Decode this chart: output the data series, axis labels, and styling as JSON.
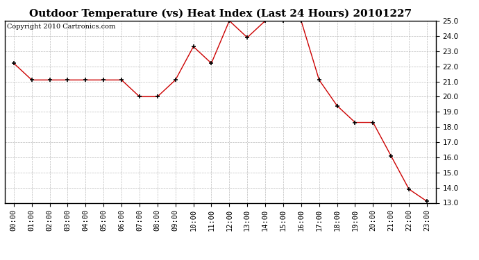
{
  "title": "Outdoor Temperature (vs) Heat Index (Last 24 Hours) 20101227",
  "copyright": "Copyright 2010 Cartronics.com",
  "x_labels": [
    "00:00",
    "01:00",
    "02:00",
    "03:00",
    "04:00",
    "05:00",
    "06:00",
    "07:00",
    "08:00",
    "09:00",
    "10:00",
    "11:00",
    "12:00",
    "13:00",
    "14:00",
    "15:00",
    "16:00",
    "17:00",
    "18:00",
    "19:00",
    "20:00",
    "21:00",
    "22:00",
    "23:00"
  ],
  "y_values": [
    22.2,
    21.1,
    21.1,
    21.1,
    21.1,
    21.1,
    21.1,
    20.0,
    20.0,
    21.1,
    23.3,
    22.2,
    25.0,
    23.9,
    25.0,
    25.0,
    25.0,
    21.1,
    19.4,
    18.3,
    18.3,
    16.1,
    13.9,
    13.1
  ],
  "line_color": "#cc0000",
  "marker": "+",
  "marker_size": 5,
  "marker_color": "#000000",
  "ylim_min": 13.0,
  "ylim_max": 25.0,
  "y_tick_interval": 1.0,
  "background_color": "#ffffff",
  "plot_bg_color": "#ffffff",
  "grid_color": "#aaaaaa",
  "title_fontsize": 11,
  "axis_fontsize": 7.5,
  "copyright_fontsize": 7
}
